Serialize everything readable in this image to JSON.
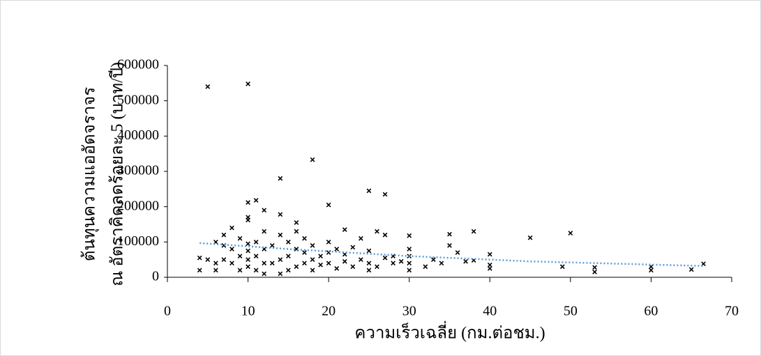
{
  "chart_data": {
    "type": "scatter",
    "x_label": "ความเร็วเฉลี่ย (กม.ต่อชม.)",
    "y_label": [
      "ต้นทุนความแออัดจราจร",
      "ณ อัตราคิดลดร้อยละ 5 (บาท/ปี)"
    ],
    "xlim": [
      0,
      70
    ],
    "xticks": [
      0,
      10,
      20,
      30,
      40,
      50,
      60,
      70
    ],
    "ylim": [
      0,
      600000
    ],
    "yticks": [
      0,
      100000,
      200000,
      300000,
      400000,
      500000,
      600000
    ],
    "color": "#000000",
    "x": [
      5,
      10,
      18,
      14,
      25,
      27,
      20,
      11,
      10,
      12,
      10,
      10,
      14,
      16,
      22,
      26,
      30,
      35,
      38,
      45,
      50,
      40,
      40,
      40,
      53,
      53,
      49,
      60,
      60,
      65,
      66.5,
      37,
      38,
      36,
      35,
      33,
      34,
      32,
      30,
      30,
      30,
      30,
      28,
      28,
      27,
      26,
      25,
      25,
      25,
      24,
      23,
      22,
      22,
      21,
      21,
      20,
      20,
      20,
      19,
      18,
      18,
      18,
      17,
      17,
      17,
      16,
      16,
      16,
      15,
      15,
      15,
      14,
      14,
      14,
      13,
      13,
      12,
      12,
      12,
      12,
      11,
      11,
      11,
      10,
      10,
      10,
      10,
      9,
      9,
      9,
      8,
      8,
      8,
      7,
      7,
      7,
      6,
      6,
      6,
      5,
      4,
      4,
      19,
      23,
      24,
      27,
      29
    ],
    "values": [
      540000,
      548000,
      333000,
      280000,
      245000,
      235000,
      205000,
      218000,
      212000,
      190000,
      170000,
      162000,
      178000,
      155000,
      135000,
      130000,
      118000,
      122000,
      130000,
      112000,
      125000,
      65000,
      35000,
      25000,
      28000,
      15000,
      30000,
      20000,
      30000,
      22000,
      38000,
      45000,
      48000,
      70000,
      90000,
      50000,
      40000,
      30000,
      80000,
      60000,
      40000,
      20000,
      60000,
      40000,
      55000,
      30000,
      75000,
      40000,
      20000,
      50000,
      30000,
      65000,
      45000,
      80000,
      25000,
      100000,
      70000,
      40000,
      60000,
      90000,
      50000,
      20000,
      110000,
      70000,
      40000,
      130000,
      80000,
      30000,
      100000,
      60000,
      20000,
      120000,
      50000,
      10000,
      90000,
      40000,
      130000,
      80000,
      40000,
      10000,
      100000,
      60000,
      20000,
      95000,
      75000,
      50000,
      30000,
      110000,
      60000,
      20000,
      140000,
      80000,
      40000,
      120000,
      90000,
      50000,
      100000,
      40000,
      20000,
      50000,
      55000,
      20000,
      35000,
      85000,
      110000,
      120000,
      45000
    ],
    "trendline": {
      "color": "#5b9bd5",
      "x": [
        4,
        15,
        30,
        45,
        66.5
      ],
      "values": [
        97000,
        80000,
        60000,
        45000,
        32000
      ]
    }
  }
}
